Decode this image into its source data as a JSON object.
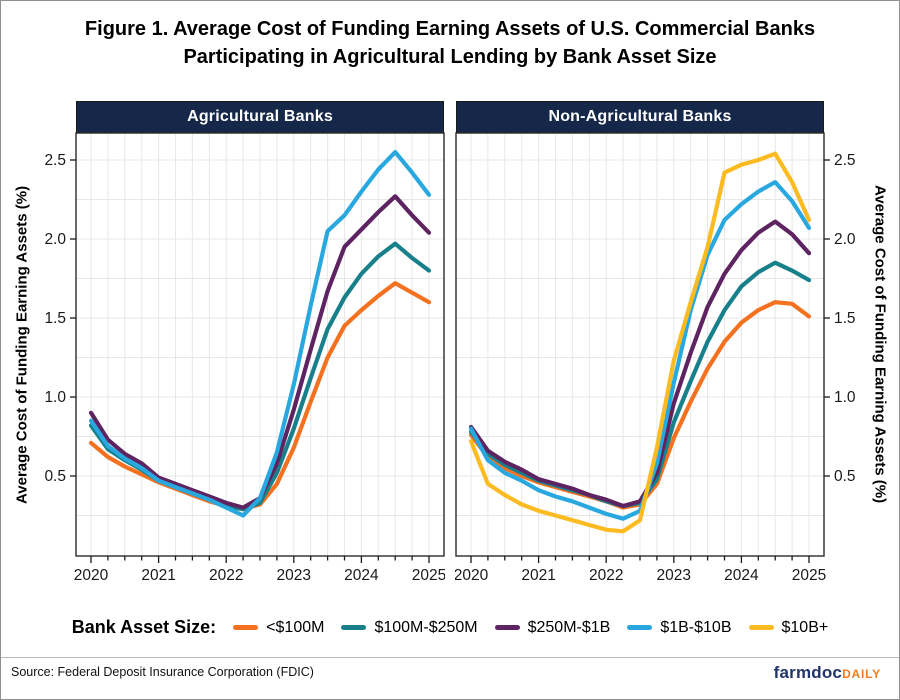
{
  "figure": {
    "title": "Figure 1. Average Cost of Funding Earning Assets of U.S. Commercial Banks Participating in Agricultural Lending by Bank Asset Size"
  },
  "axes": {
    "y_axis_label": "Average Cost of Funding Earning Assets (%)",
    "y_tick_labels": [
      "0.5",
      "1.0",
      "1.5",
      "2.0",
      "2.5"
    ],
    "x_tick_labels": [
      "2020",
      "2021",
      "2022",
      "2023",
      "2024",
      "2025"
    ]
  },
  "legend": {
    "title": "Bank Asset Size:",
    "items": [
      {
        "label": "<$100M",
        "color": "#F4711F"
      },
      {
        "label": "$100M-$250M",
        "color": "#17808A"
      },
      {
        "label": "$250M-$1B",
        "color": "#5E2462"
      },
      {
        "label": "$1B-$10B",
        "color": "#29A8DF"
      },
      {
        "label": "$10B+",
        "color": "#FBBB21"
      }
    ]
  },
  "footer": {
    "source": "Source: Federal Deposit Insurance Corporation (FDIC)",
    "logo_main": "farmdoc",
    "logo_daily": "DAILY"
  },
  "colors": {
    "panel_header_bg": "#16284A",
    "panel_header_text": "#FFFFFF",
    "gridline": "#E7E7E7",
    "axis_text": "#1A1A1A",
    "logo_navy": "#22356B",
    "logo_orange": "#F47B20"
  },
  "chart_data": [
    {
      "type": "line",
      "panel": "Agricultural Banks",
      "x_start": 2020,
      "x_step": 0.25,
      "x_tick_labels": [
        "2020",
        "2021",
        "2022",
        "2023",
        "2024",
        "2025"
      ],
      "ylabel": "Average Cost of Funding Earning Assets (%)",
      "ylim": [
        0,
        2.67
      ],
      "y_ticks": [
        0.5,
        1.0,
        1.5,
        2.0,
        2.5
      ],
      "grid": true,
      "series": [
        {
          "name": "<$100M",
          "color": "#F4711F",
          "values": [
            0.71,
            0.62,
            0.56,
            0.51,
            0.46,
            0.42,
            0.38,
            0.34,
            0.31,
            0.29,
            0.32,
            0.45,
            0.68,
            0.97,
            1.25,
            1.45,
            1.55,
            1.64,
            1.72,
            1.66,
            1.6
          ]
        },
        {
          "name": "$100M-$250M",
          "color": "#17808A",
          "values": [
            0.82,
            0.67,
            0.6,
            0.54,
            0.47,
            0.43,
            0.39,
            0.35,
            0.31,
            0.29,
            0.33,
            0.52,
            0.8,
            1.12,
            1.43,
            1.63,
            1.78,
            1.89,
            1.97,
            1.88,
            1.8
          ]
        },
        {
          "name": "$250M-$1B",
          "color": "#5E2462",
          "values": [
            0.9,
            0.73,
            0.64,
            0.58,
            0.49,
            0.45,
            0.41,
            0.37,
            0.33,
            0.3,
            0.36,
            0.58,
            0.92,
            1.3,
            1.67,
            1.95,
            2.06,
            2.17,
            2.27,
            2.15,
            2.04
          ]
        },
        {
          "name": "$1B-$10B",
          "color": "#29A8DF",
          "values": [
            0.85,
            0.69,
            0.61,
            0.55,
            0.47,
            0.43,
            0.39,
            0.35,
            0.3,
            0.25,
            0.36,
            0.65,
            1.08,
            1.58,
            2.05,
            2.15,
            2.3,
            2.44,
            2.55,
            2.42,
            2.28
          ]
        }
      ]
    },
    {
      "type": "line",
      "panel": "Non-Agricultural Banks",
      "x_start": 2020,
      "x_step": 0.25,
      "x_tick_labels": [
        "2020",
        "2021",
        "2022",
        "2023",
        "2024",
        "2025"
      ],
      "ylabel": "Average Cost of Funding Earning Assets (%)",
      "ylim": [
        0,
        2.67
      ],
      "y_ticks": [
        0.5,
        1.0,
        1.5,
        2.0,
        2.5
      ],
      "grid": true,
      "series": [
        {
          "name": "<$100M",
          "color": "#F4711F",
          "values": [
            0.76,
            0.62,
            0.55,
            0.5,
            0.46,
            0.43,
            0.4,
            0.37,
            0.34,
            0.3,
            0.32,
            0.45,
            0.74,
            0.97,
            1.18,
            1.35,
            1.47,
            1.55,
            1.6,
            1.59,
            1.51
          ]
        },
        {
          "name": "$100M-$250M",
          "color": "#17808A",
          "values": [
            0.78,
            0.64,
            0.57,
            0.52,
            0.47,
            0.44,
            0.41,
            0.38,
            0.34,
            0.31,
            0.33,
            0.48,
            0.84,
            1.1,
            1.35,
            1.55,
            1.7,
            1.79,
            1.85,
            1.8,
            1.74
          ]
        },
        {
          "name": "$250M-$1B",
          "color": "#5E2462",
          "values": [
            0.81,
            0.66,
            0.59,
            0.54,
            0.48,
            0.45,
            0.42,
            0.38,
            0.35,
            0.31,
            0.34,
            0.52,
            0.96,
            1.28,
            1.57,
            1.78,
            1.93,
            2.04,
            2.11,
            2.03,
            1.91
          ]
        },
        {
          "name": "$1B-$10B",
          "color": "#29A8DF",
          "values": [
            0.8,
            0.6,
            0.52,
            0.47,
            0.41,
            0.37,
            0.34,
            0.3,
            0.26,
            0.23,
            0.28,
            0.58,
            1.09,
            1.55,
            1.9,
            2.12,
            2.22,
            2.3,
            2.36,
            2.24,
            2.07
          ]
        },
        {
          "name": "$10B+",
          "color": "#FBBB21",
          "values": [
            0.72,
            0.45,
            0.38,
            0.32,
            0.28,
            0.25,
            0.22,
            0.19,
            0.16,
            0.15,
            0.22,
            0.68,
            1.23,
            1.6,
            1.95,
            2.42,
            2.47,
            2.5,
            2.54,
            2.36,
            2.12
          ]
        }
      ]
    }
  ]
}
